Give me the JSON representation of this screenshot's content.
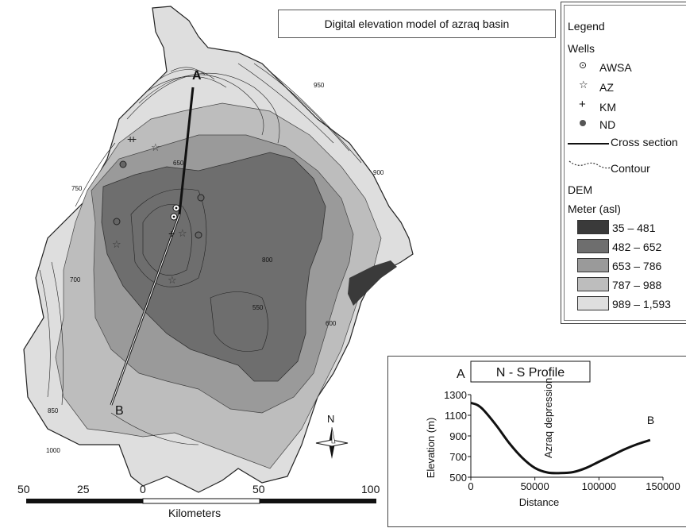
{
  "title": "Digital elevation model of azraq basin",
  "legend": {
    "heading": "Legend",
    "wells_heading": "Wells",
    "wells": [
      {
        "symbol": "circle-dot-icon",
        "label": "AWSA"
      },
      {
        "symbol": "star-icon",
        "label": "AZ"
      },
      {
        "symbol": "plus-icon",
        "label": "KM"
      },
      {
        "symbol": "filled-circle-icon",
        "label": "ND"
      }
    ],
    "cross_section": "Cross section",
    "contour": "Contour",
    "dem_heading": "DEM",
    "dem_unit": "Meter (asl)",
    "classes": [
      {
        "label": "35 – 481",
        "color": "#3a3a3a"
      },
      {
        "label": "482 – 652",
        "color": "#6e6e6e"
      },
      {
        "label": "653 – 786",
        "color": "#9a9a9a"
      },
      {
        "label": "787 – 988",
        "color": "#bdbdbd"
      },
      {
        "label": "989 – 1,593",
        "color": "#dedede"
      }
    ]
  },
  "map": {
    "point_a": "A",
    "point_b": "B",
    "north": "N",
    "contour_labels": [
      "650",
      "750",
      "800",
      "850",
      "900",
      "550",
      "600",
      "950",
      "1000",
      "700"
    ]
  },
  "scale_bar": {
    "ticks": [
      "50",
      "25",
      "0",
      "50",
      "100"
    ],
    "unit": "Kilometers"
  },
  "chart_data": {
    "type": "line",
    "title": "N - S Profile",
    "xlabel": "Distance",
    "ylabel": "Elevation (m)",
    "xlim": [
      0,
      150000
    ],
    "ylim": [
      500,
      1300
    ],
    "x_ticks": [
      "0",
      "50000",
      "100000",
      "150000"
    ],
    "y_ticks": [
      "500",
      "700",
      "900",
      "1100",
      "1300"
    ],
    "start_label": "A",
    "end_label": "B",
    "annotation": "Azraq depression",
    "x": [
      0,
      5000,
      10000,
      20000,
      30000,
      40000,
      50000,
      60000,
      70000,
      80000,
      90000,
      100000,
      110000,
      120000,
      130000,
      140000
    ],
    "y": [
      1220,
      1200,
      1150,
      1000,
      830,
      690,
      590,
      545,
      540,
      550,
      590,
      650,
      710,
      770,
      820,
      860
    ]
  }
}
